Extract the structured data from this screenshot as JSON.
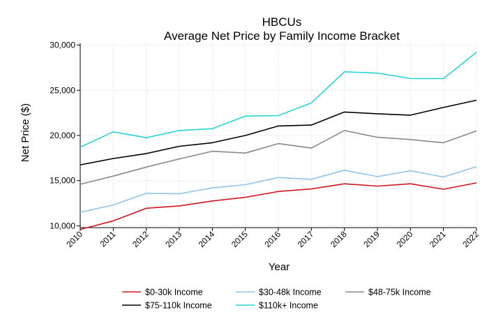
{
  "chart_data": {
    "type": "line",
    "title": "HBCUs",
    "subtitle": "Average Net Price by Family Income Bracket",
    "xlabel": "Year",
    "ylabel": "Net Price ($)",
    "x": [
      "2010",
      "2011",
      "2012",
      "2013",
      "2014",
      "2015",
      "2016",
      "2017",
      "2018",
      "2019",
      "2020",
      "2021",
      "2022"
    ],
    "ylim": [
      9800,
      30200
    ],
    "yticks": [
      10000,
      15000,
      20000,
      25000,
      30000
    ],
    "ytick_labels": [
      "10,000",
      "15,000",
      "20,000",
      "25,000",
      "30,000"
    ],
    "grid": true,
    "legend_position": "bottom",
    "series": [
      {
        "name": "$0-30k Income",
        "color": "#d0161e",
        "values": [
          9600,
          10550,
          11950,
          12200,
          12750,
          13150,
          13800,
          14080,
          14650,
          14400,
          14650,
          14050,
          14750
        ]
      },
      {
        "name": "$30-48k Income",
        "color": "#8fc3ea",
        "values": [
          11500,
          12300,
          13600,
          13550,
          14200,
          14550,
          15350,
          15150,
          16150,
          15450,
          16100,
          15400,
          16550
        ]
      },
      {
        "name": "$48-75k Income",
        "color": "#888888",
        "values": [
          14600,
          15500,
          16500,
          17400,
          18250,
          18050,
          19100,
          18600,
          20550,
          19800,
          19550,
          19200,
          20500
        ]
      },
      {
        "name": "$75-110k Income",
        "color": "#000000",
        "values": [
          16750,
          17450,
          18000,
          18800,
          19200,
          20000,
          21050,
          21150,
          22600,
          22400,
          22250,
          23100,
          23900
        ]
      },
      {
        "name": "$110k+ Income",
        "color": "#29d3d8",
        "values": [
          18700,
          20400,
          19750,
          20550,
          20750,
          22150,
          22200,
          23600,
          27050,
          26900,
          26300,
          26300,
          29200
        ]
      }
    ]
  }
}
